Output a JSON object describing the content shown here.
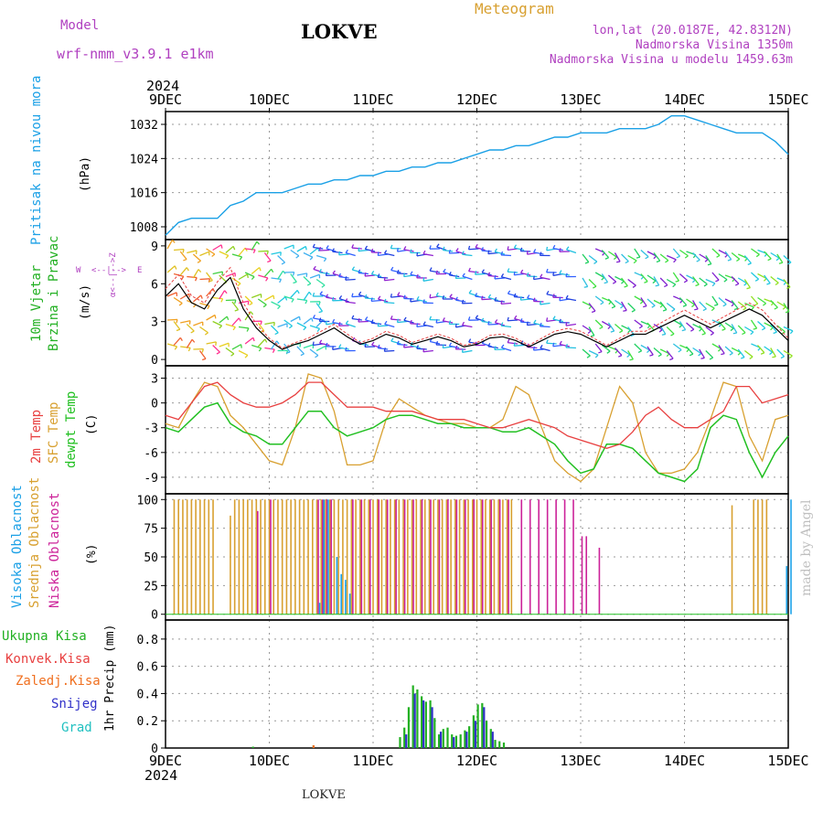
{
  "header": {
    "model_label": "Model",
    "model_name": "wrf-nmm_v3.9.1 e1km",
    "station": "LOKVE",
    "meteogram": "Meteogram",
    "lonlat": "lon,lat (20.0187E, 42.8312N)",
    "altitude": "Nadmorska Visina 1350m",
    "model_altitude": "Nadmorska Visina u modelu 1459.63m",
    "year_top": "2024",
    "year_bottom": "2024",
    "footer_station": "LOKVE",
    "watermark": "made by Angel"
  },
  "colors": {
    "pressure": "#1aa0e6",
    "temp2m": "#e84040",
    "sfc_temp": "#d8a030",
    "dewpt": "#22c022",
    "high_cloud": "#1aa0e6",
    "mid_cloud": "#d8a030",
    "low_cloud": "#cc2299",
    "total_precip": "#22b022",
    "conv_precip": "#e84040",
    "freezing": "#f07020",
    "snow": "#3030c8",
    "graupel": "#20c0c0",
    "wind_label": "#22b022",
    "wind_compass": "#b040c0"
  },
  "x_axis": {
    "ticks": [
      "9DEC",
      "10DEC",
      "11DEC",
      "12DEC",
      "13DEC",
      "14DEC",
      "15DEC"
    ],
    "range_hours": [
      0,
      144
    ]
  },
  "panels": {
    "pressure": {
      "label": "Pritisak na nivou mora",
      "unit": "(hPa)",
      "yticks": [
        "1008",
        "1016",
        "1024",
        "1032"
      ]
    },
    "wind": {
      "label1": "10m Vjetar",
      "label2": "Brzina i Pravac",
      "unit": "(m/s)",
      "yticks": [
        "0",
        "3",
        "6",
        "9"
      ],
      "compass_w": "W",
      "compass_e": "E",
      "compass_arrows": "<--|-->",
      "compass_vertical": "α<--|-->Z"
    },
    "temperature": {
      "label1": "2m Temp",
      "label2": "SFC Temp",
      "label3": "dewpt Temp",
      "unit": "(C)",
      "yticks": [
        "3",
        "0",
        "-3",
        "-6",
        "-9"
      ]
    },
    "cloud": {
      "label1": "Visoka Oblacnost",
      "label2": "Srednja Oblacnost",
      "label3": "Niska Oblacnost",
      "unit": "(%)",
      "yticks": [
        "0",
        "25",
        "50",
        "75",
        "100"
      ]
    },
    "precip": {
      "legend": [
        "Ukupna Kisa",
        "Konvek.Kisa",
        "Zaledj.Kisa",
        "Snijeg",
        "Grad"
      ],
      "unit": "1hr Precip (mm)",
      "yticks": [
        "0",
        "0.2",
        "0.4",
        "0.6",
        "0.8"
      ]
    }
  },
  "chart_data": [
    {
      "type": "line",
      "title": "Pritisak na nivou mora",
      "ylabel": "(hPa)",
      "ylim": [
        1005,
        1035
      ],
      "grid": true,
      "series": [
        {
          "name": "Pritisak na nivou mora",
          "x": [
            0,
            3,
            6,
            9,
            12,
            15,
            18,
            21,
            24,
            27,
            30,
            33,
            36,
            39,
            42,
            45,
            48,
            51,
            54,
            57,
            60,
            63,
            66,
            69,
            72,
            75,
            78,
            81,
            84,
            87,
            90,
            93,
            96,
            99,
            102,
            105,
            108,
            111,
            114,
            117,
            120,
            123,
            126,
            129,
            132,
            135,
            138,
            141,
            144
          ],
          "values": [
            1006,
            1009,
            1010,
            1010,
            1010,
            1013,
            1014,
            1016,
            1016,
            1016,
            1017,
            1018,
            1018,
            1019,
            1019,
            1020,
            1020,
            1021,
            1021,
            1022,
            1022,
            1023,
            1023,
            1024,
            1025,
            1026,
            1026,
            1027,
            1027,
            1028,
            1029,
            1029,
            1030,
            1030,
            1030,
            1031,
            1031,
            1031,
            1032,
            1034,
            1034,
            1033,
            1032,
            1031,
            1030,
            1030,
            1030,
            1028,
            1025
          ]
        }
      ]
    },
    {
      "type": "line",
      "title": "10m Vjetar Brzina i Pravac",
      "ylabel": "(m/s)",
      "ylim": [
        -0.5,
        9.5
      ],
      "series": [
        {
          "name": "wind speed",
          "x": [
            0,
            3,
            6,
            9,
            12,
            15,
            18,
            21,
            24,
            27,
            30,
            33,
            36,
            39,
            42,
            45,
            48,
            51,
            54,
            57,
            60,
            63,
            66,
            69,
            72,
            75,
            78,
            81,
            84,
            87,
            90,
            93,
            96,
            99,
            102,
            105,
            108,
            111,
            114,
            117,
            120,
            123,
            126,
            129,
            132,
            135,
            138,
            141,
            144
          ],
          "values": [
            5,
            6,
            4.5,
            4,
            5.5,
            6.5,
            4,
            2.5,
            1.5,
            0.8,
            1.2,
            1.5,
            2,
            2.5,
            1.8,
            1.2,
            1.5,
            2,
            1.7,
            1.2,
            1.5,
            1.8,
            1.5,
            1,
            1.2,
            1.7,
            1.8,
            1.5,
            1,
            1.5,
            2,
            2.2,
            2,
            1.5,
            1,
            1.5,
            2,
            2,
            2.5,
            3,
            3.5,
            3,
            2.5,
            3,
            3.5,
            4,
            3.5,
            2.5,
            1.5
          ]
        }
      ]
    },
    {
      "type": "line",
      "title": "2m Temp / SFC Temp / dewpt Temp",
      "ylabel": "(C)",
      "ylim": [
        -11,
        4.5
      ],
      "grid": true,
      "series": [
        {
          "name": "2m Temp",
          "x": [
            0,
            3,
            6,
            9,
            12,
            15,
            18,
            21,
            24,
            27,
            30,
            33,
            36,
            39,
            42,
            45,
            48,
            51,
            54,
            57,
            60,
            63,
            66,
            69,
            72,
            75,
            78,
            81,
            84,
            87,
            90,
            93,
            96,
            99,
            102,
            105,
            108,
            111,
            114,
            117,
            120,
            123,
            126,
            129,
            132,
            135,
            138,
            141,
            144
          ],
          "values": [
            -1.5,
            -2,
            0,
            2,
            2.5,
            1,
            0,
            -0.5,
            -0.5,
            0,
            1,
            2.5,
            2.5,
            1,
            -0.5,
            -0.5,
            -0.5,
            -1,
            -1,
            -1,
            -1.5,
            -2,
            -2,
            -2,
            -2.5,
            -3,
            -3,
            -2.5,
            -2,
            -2.5,
            -3,
            -4,
            -4.5,
            -5,
            -5.5,
            -5,
            -3.5,
            -1.5,
            -0.5,
            -2,
            -3,
            -3,
            -2,
            -1,
            2,
            2,
            0,
            0.5,
            1
          ]
        },
        {
          "name": "SFC Temp",
          "x": [
            0,
            3,
            6,
            9,
            12,
            15,
            18,
            21,
            24,
            27,
            30,
            33,
            36,
            39,
            42,
            45,
            48,
            51,
            54,
            57,
            60,
            63,
            66,
            69,
            72,
            75,
            78,
            81,
            84,
            87,
            90,
            93,
            96,
            99,
            102,
            105,
            108,
            111,
            114,
            117,
            120,
            123,
            126,
            129,
            132,
            135,
            138,
            141,
            144
          ],
          "values": [
            -2.5,
            -3,
            0,
            2.5,
            2,
            -1.5,
            -3,
            -5,
            -7,
            -7.5,
            -3,
            3.5,
            3,
            -1,
            -7.5,
            -7.5,
            -7,
            -2,
            0.5,
            -0.5,
            -1.5,
            -2,
            -2.5,
            -2.5,
            -3,
            -3,
            -2,
            2,
            1,
            -3,
            -7,
            -8.5,
            -9.5,
            -8,
            -3,
            2,
            0,
            -6,
            -8.5,
            -8.5,
            -8,
            -6,
            -2,
            2.5,
            2,
            -4,
            -7,
            -2,
            -1.5
          ]
        },
        {
          "name": "dewpt Temp",
          "x": [
            0,
            3,
            6,
            9,
            12,
            15,
            18,
            21,
            24,
            27,
            30,
            33,
            36,
            39,
            42,
            45,
            48,
            51,
            54,
            57,
            60,
            63,
            66,
            69,
            72,
            75,
            78,
            81,
            84,
            87,
            90,
            93,
            96,
            99,
            102,
            105,
            108,
            111,
            114,
            117,
            120,
            123,
            126,
            129,
            132,
            135,
            138,
            141,
            144
          ],
          "values": [
            -3,
            -3.5,
            -2,
            -0.5,
            0,
            -2.5,
            -3.5,
            -4,
            -5,
            -5,
            -3,
            -1,
            -1,
            -3,
            -4,
            -3.5,
            -3,
            -2,
            -1.5,
            -1.5,
            -2,
            -2.5,
            -2.5,
            -3,
            -3,
            -3,
            -3.5,
            -3.5,
            -3,
            -4,
            -5,
            -7,
            -8.5,
            -8,
            -5,
            -5,
            -5.5,
            -7,
            -8.5,
            -9,
            -9.5,
            -8,
            -3,
            -1.5,
            -2,
            -6,
            -9,
            -6,
            -4
          ]
        }
      ]
    },
    {
      "type": "bar",
      "title": "Oblacnost",
      "ylabel": "(%)",
      "ylim": [
        0,
        100
      ],
      "grid": true,
      "series": [
        {
          "name": "Srednja Oblacnost",
          "x": [
            2,
            3,
            4,
            5,
            6,
            7,
            8,
            9,
            10,
            11,
            15,
            16,
            17,
            18,
            19,
            20,
            21,
            22,
            23,
            24,
            25,
            26,
            27,
            28,
            29,
            30,
            31,
            32,
            33,
            34,
            35,
            36,
            37,
            38,
            39,
            40,
            41,
            42,
            43,
            44,
            45,
            46,
            47,
            48,
            49,
            50,
            51,
            52,
            53,
            54,
            55,
            56,
            57,
            58,
            59,
            60,
            61,
            62,
            63,
            64,
            65,
            66,
            67,
            68,
            69,
            70,
            71,
            72,
            73,
            74,
            75,
            76,
            77,
            78,
            79,
            80,
            131,
            136,
            137,
            138,
            139
          ],
          "values": [
            100,
            100,
            100,
            100,
            100,
            100,
            100,
            100,
            100,
            100,
            86,
            100,
            100,
            100,
            100,
            100,
            100,
            100,
            100,
            100,
            100,
            100,
            100,
            100,
            100,
            100,
            100,
            100,
            100,
            100,
            100,
            100,
            100,
            100,
            100,
            100,
            100,
            100,
            100,
            100,
            100,
            100,
            100,
            100,
            100,
            100,
            100,
            100,
            100,
            100,
            100,
            100,
            100,
            100,
            100,
            100,
            100,
            100,
            100,
            100,
            100,
            100,
            100,
            100,
            100,
            100,
            100,
            100,
            100,
            100,
            100,
            100,
            100,
            100,
            100,
            100,
            95,
            100,
            100,
            100,
            100
          ]
        },
        {
          "name": "Niska Oblacnost",
          "x": [
            21,
            24,
            35,
            36,
            37,
            38,
            43,
            45,
            47,
            49,
            51,
            53,
            55,
            57,
            59,
            61,
            63,
            65,
            67,
            69,
            71,
            73,
            75,
            77,
            79,
            82,
            84,
            86,
            88,
            90,
            92,
            94,
            96,
            97,
            100
          ],
          "values": [
            90,
            100,
            100,
            100,
            100,
            100,
            100,
            100,
            100,
            100,
            100,
            100,
            100,
            100,
            100,
            100,
            100,
            100,
            100,
            100,
            100,
            100,
            100,
            100,
            100,
            100,
            100,
            100,
            100,
            100,
            100,
            100,
            68,
            68,
            58
          ]
        },
        {
          "name": "Visoka Oblacnost",
          "x": [
            35,
            36,
            37,
            39,
            40,
            41,
            42,
            143,
            144
          ],
          "values": [
            10,
            100,
            100,
            50,
            35,
            30,
            18,
            42,
            100
          ]
        }
      ]
    },
    {
      "type": "bar",
      "title": "1hr Precip",
      "ylabel": "1hr Precip (mm)",
      "ylim": [
        0,
        0.9
      ],
      "grid": true,
      "series": [
        {
          "name": "Ukupna Kisa",
          "x": [
            20,
            34,
            54,
            55,
            56,
            57,
            58,
            59,
            60,
            61,
            62,
            63,
            64,
            65,
            66,
            67,
            68,
            69,
            70,
            71,
            72,
            73,
            74,
            75,
            76,
            77,
            78
          ],
          "values": [
            0.01,
            0.02,
            0.08,
            0.15,
            0.3,
            0.46,
            0.43,
            0.38,
            0.34,
            0.35,
            0.22,
            0.1,
            0.14,
            0.15,
            0.1,
            0.09,
            0.1,
            0.13,
            0.16,
            0.24,
            0.32,
            0.33,
            0.2,
            0.14,
            0.06,
            0.05,
            0.04
          ]
        },
        {
          "name": "Konvek.Kisa",
          "x": [],
          "values": []
        },
        {
          "name": "Zaledj.Kisa",
          "x": [
            34
          ],
          "values": [
            0.02
          ]
        },
        {
          "name": "Snijeg",
          "x": [
            55,
            57,
            59,
            61,
            63,
            66,
            69,
            71,
            73,
            75
          ],
          "values": [
            0.1,
            0.4,
            0.35,
            0.3,
            0.12,
            0.08,
            0.12,
            0.2,
            0.3,
            0.12
          ]
        },
        {
          "name": "Grad",
          "x": [],
          "values": []
        }
      ]
    }
  ]
}
